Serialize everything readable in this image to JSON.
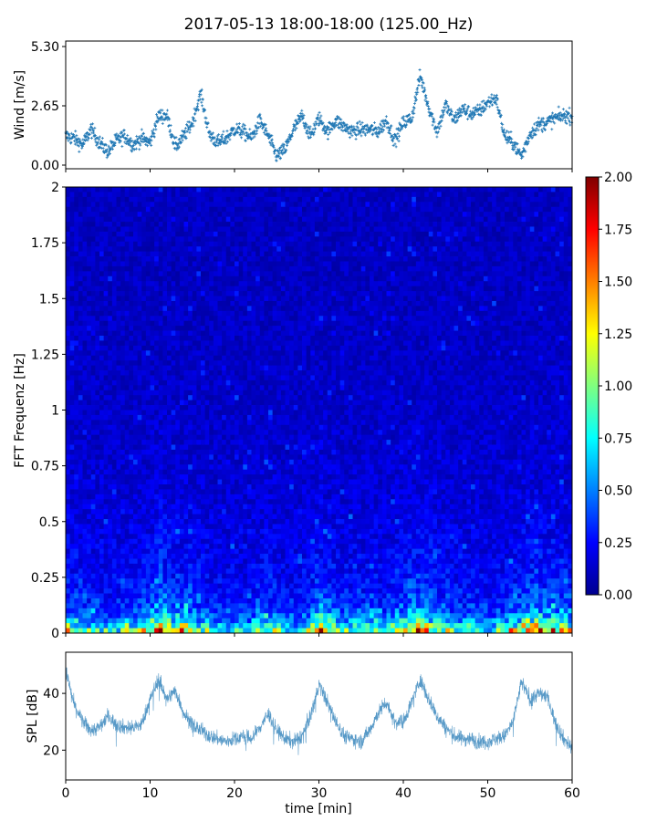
{
  "figure": {
    "title": "2017-05-13 18:00-18:00 (125.00_Hz)",
    "xlabel": "time [min]"
  },
  "chart_data": [
    {
      "type": "scatter",
      "name": "wind",
      "ylabel": "Wind [m/s]",
      "ylim": [
        0,
        5.3
      ],
      "yticks": [
        "0.00",
        "2.65",
        "5.30"
      ],
      "xlim": [
        0,
        60
      ],
      "marker": "+",
      "color": "#1f77b4",
      "x": [
        0,
        1,
        2,
        3,
        4,
        5,
        6,
        7,
        8,
        9,
        10,
        11,
        12,
        13,
        14,
        15,
        16,
        17,
        18,
        19,
        20,
        21,
        22,
        23,
        24,
        25,
        26,
        27,
        28,
        29,
        30,
        31,
        32,
        33,
        34,
        35,
        36,
        37,
        38,
        39,
        40,
        41,
        42,
        43,
        44,
        45,
        46,
        47,
        48,
        49,
        50,
        51,
        52,
        53,
        54,
        55,
        56,
        57,
        58,
        59,
        60
      ],
      "y": [
        1.3,
        1.2,
        0.9,
        1.6,
        1.0,
        0.6,
        1.1,
        1.3,
        0.9,
        1.2,
        1.0,
        2.2,
        2.2,
        0.8,
        1.3,
        1.9,
        3.2,
        1.4,
        1.0,
        1.2,
        1.6,
        1.5,
        1.2,
        2.0,
        1.3,
        0.4,
        0.7,
        1.6,
        2.2,
        1.3,
        2.1,
        1.5,
        2.0,
        1.7,
        1.5,
        1.6,
        1.6,
        1.5,
        2.0,
        1.1,
        1.9,
        2.1,
        4.0,
        2.6,
        1.5,
        2.7,
        2.0,
        2.5,
        2.3,
        2.4,
        2.8,
        3.0,
        1.3,
        1.0,
        0.4,
        1.4,
        1.8,
        1.9,
        2.1,
        2.2,
        2.2
      ],
      "grid": false
    },
    {
      "type": "heatmap",
      "name": "spectrogram",
      "ylabel": "FFT Frequenz [Hz]",
      "xlim": [
        0,
        60
      ],
      "ylim": [
        0,
        2
      ],
      "yticks": [
        "0",
        "0.25",
        "0.5",
        "0.75",
        "1",
        "1.25",
        "1.5",
        "1.75",
        "2"
      ],
      "colormap": "jet",
      "colorbar": {
        "range": [
          0,
          2
        ],
        "ticks": [
          "0.00",
          "0.25",
          "0.50",
          "0.75",
          "1.00",
          "1.25",
          "1.50",
          "1.75",
          "2.00"
        ]
      },
      "band_energy_by_minute": [
        0.7,
        0.6,
        0.6,
        0.5,
        0.5,
        0.4,
        0.5,
        0.6,
        0.5,
        0.6,
        0.8,
        1.0,
        1.0,
        0.8,
        0.9,
        0.8,
        0.6,
        0.5,
        0.4,
        0.4,
        0.4,
        0.4,
        0.4,
        0.6,
        0.8,
        0.5,
        0.4,
        0.4,
        0.5,
        0.6,
        0.9,
        0.9,
        0.7,
        0.5,
        0.5,
        0.6,
        0.7,
        0.6,
        0.5,
        0.6,
        0.8,
        0.9,
        1.0,
        0.8,
        0.6,
        0.6,
        0.5,
        0.5,
        0.5,
        0.5,
        0.4,
        0.4,
        0.5,
        0.7,
        0.9,
        1.0,
        1.0,
        0.9,
        0.8,
        0.8,
        0.8
      ]
    },
    {
      "type": "line",
      "name": "spl",
      "ylabel": "SPL [dB]",
      "ylim": [
        9.5,
        54.5
      ],
      "yticks": [
        "20",
        "40"
      ],
      "xlim": [
        0,
        60
      ],
      "xticks": [
        "0",
        "10",
        "20",
        "30",
        "40",
        "50",
        "60"
      ],
      "color": "#1f77b4",
      "x": [
        0,
        1,
        2,
        3,
        4,
        5,
        6,
        7,
        8,
        9,
        10,
        11,
        12,
        13,
        14,
        15,
        16,
        17,
        18,
        19,
        20,
        21,
        22,
        23,
        24,
        25,
        26,
        27,
        28,
        29,
        30,
        31,
        32,
        33,
        34,
        35,
        36,
        37,
        38,
        39,
        40,
        41,
        42,
        43,
        44,
        45,
        46,
        47,
        48,
        49,
        50,
        51,
        52,
        53,
        54,
        55,
        56,
        57,
        58,
        59,
        60
      ],
      "y": [
        48,
        36,
        30,
        27,
        28,
        32,
        29,
        28,
        28,
        29,
        38,
        45,
        38,
        41,
        33,
        29,
        27,
        25,
        24,
        23,
        24,
        25,
        24,
        28,
        33,
        27,
        24,
        23,
        25,
        32,
        43,
        37,
        30,
        25,
        24,
        23,
        27,
        33,
        37,
        30,
        30,
        37,
        45,
        38,
        32,
        28,
        25,
        24,
        24,
        23,
        23,
        24,
        25,
        30,
        44,
        38,
        40,
        39,
        30,
        24,
        21
      ],
      "grid": false
    }
  ]
}
